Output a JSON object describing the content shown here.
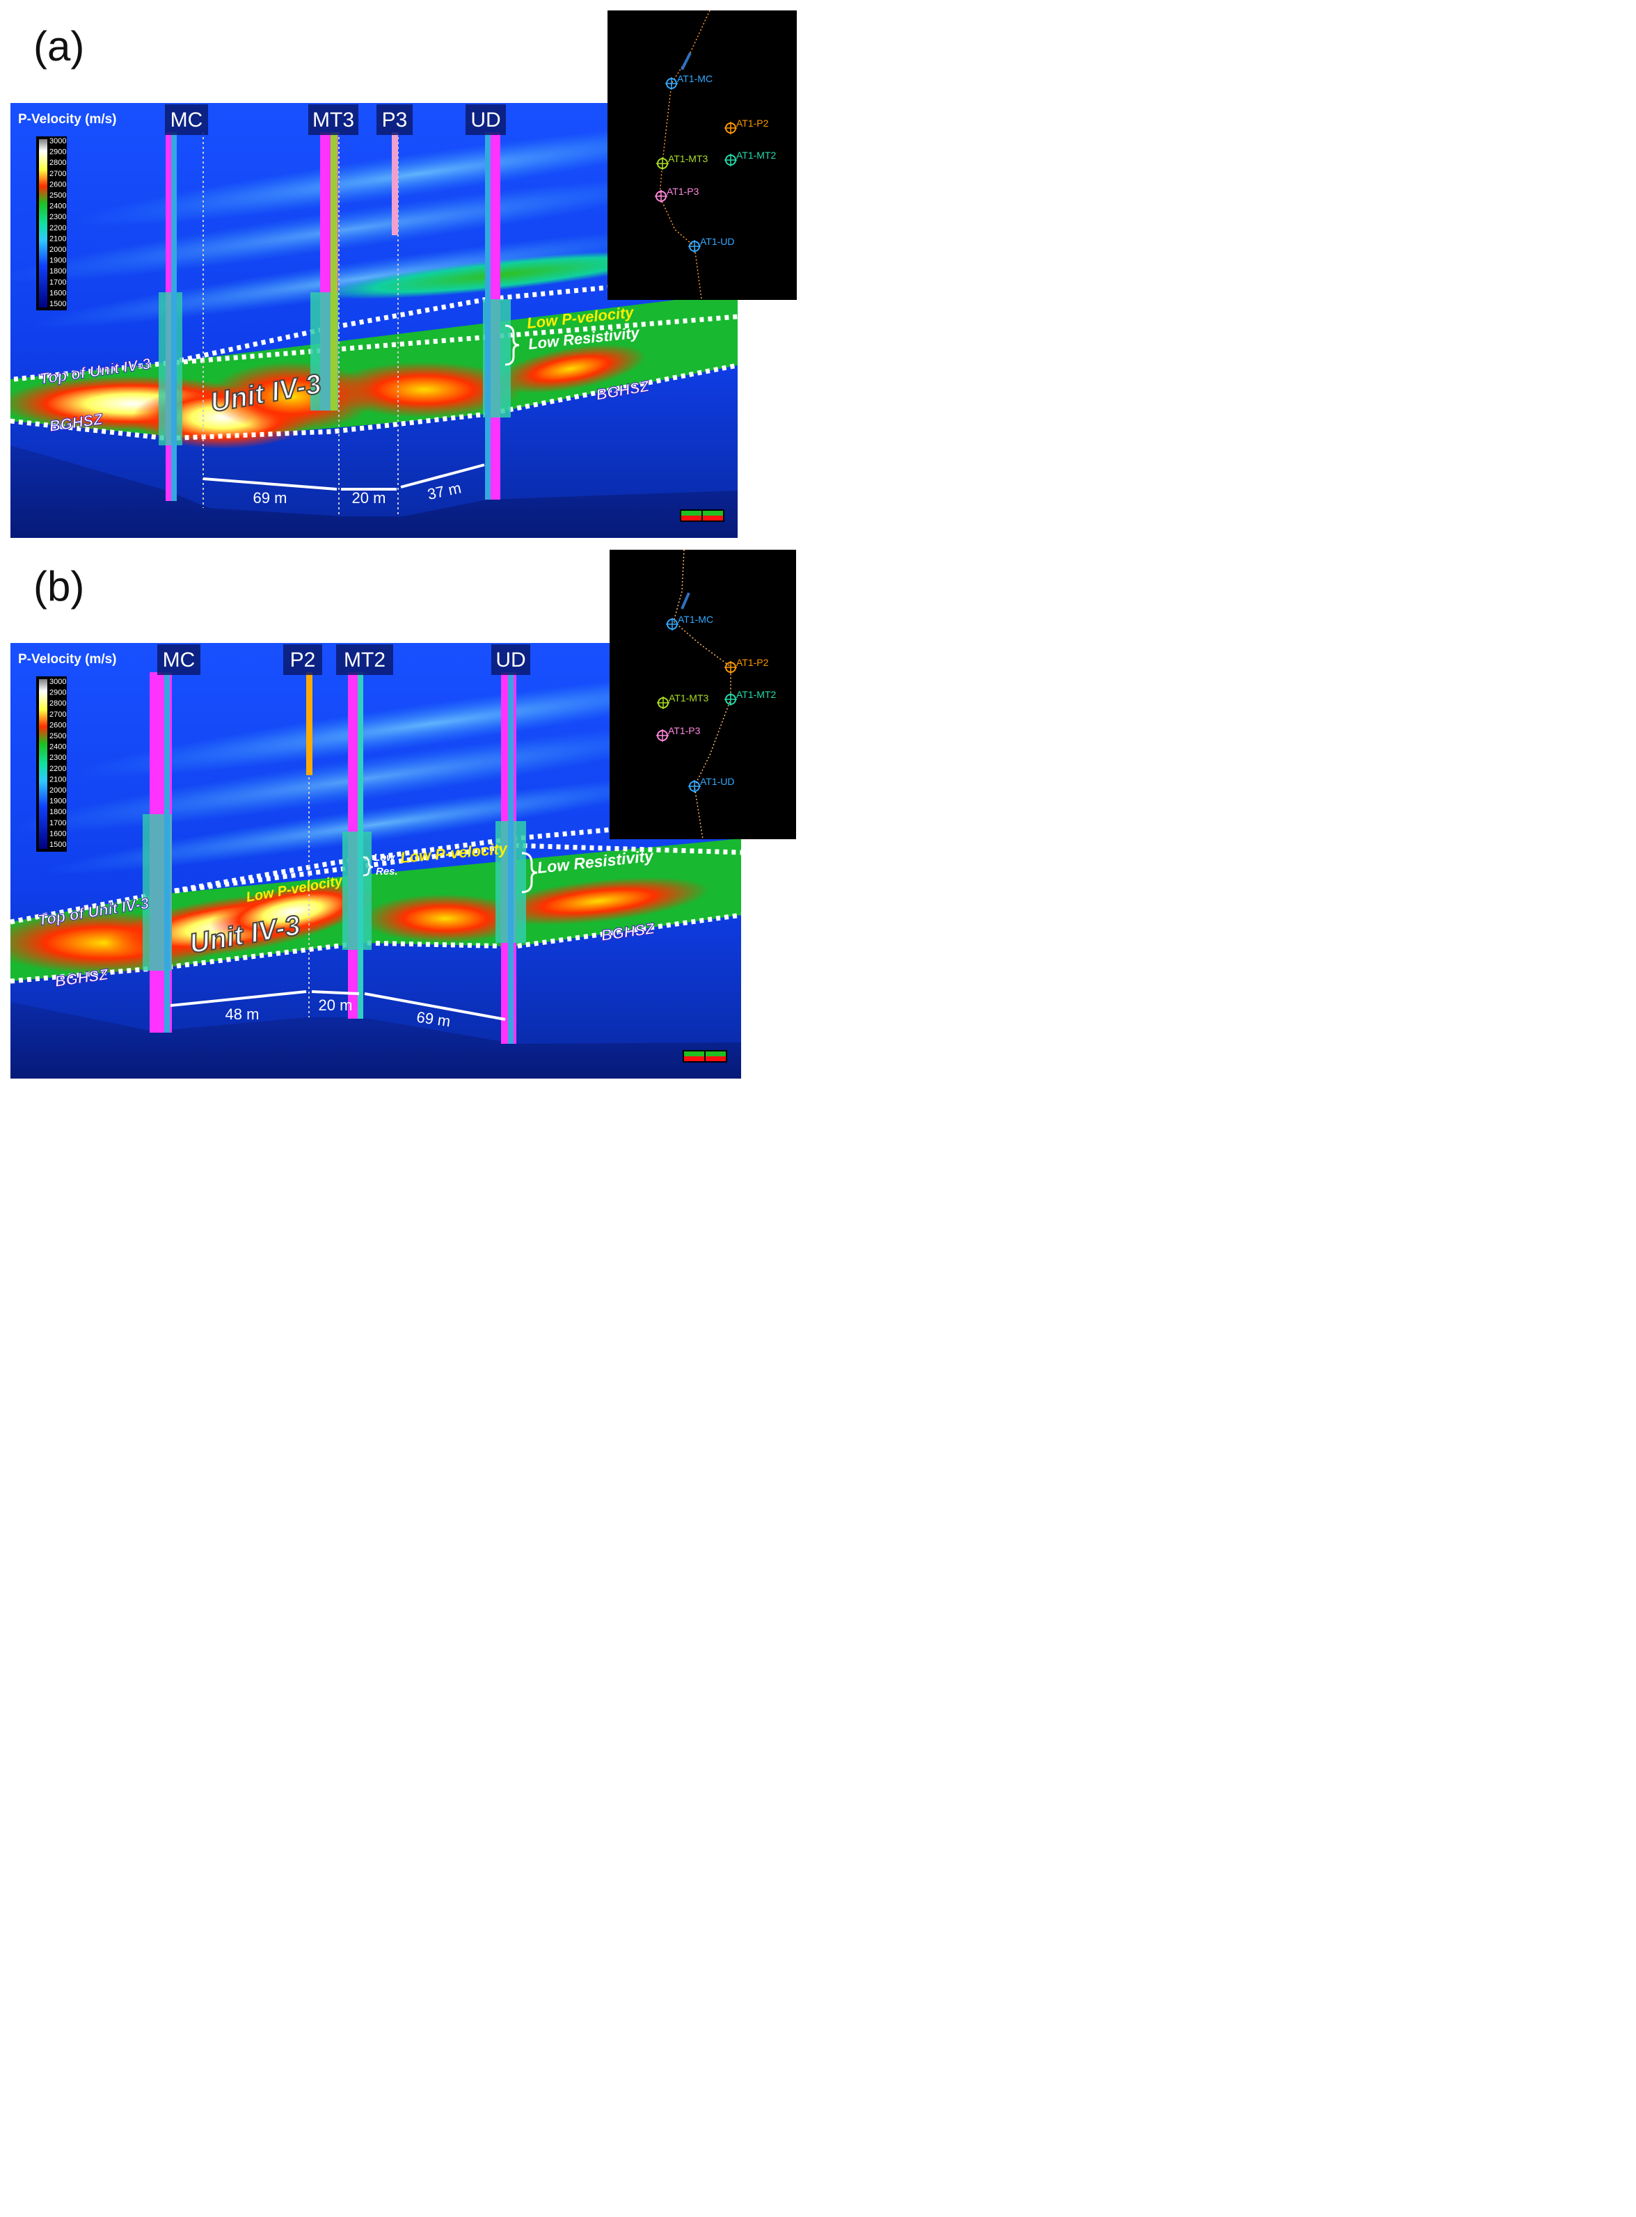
{
  "panels": [
    {
      "letter": "(a)",
      "colorbar": {
        "title": "P-Velocity (m/s)",
        "ticks": [
          "3000",
          "2900",
          "2800",
          "2700",
          "2600",
          "2500",
          "2400",
          "2300",
          "2200",
          "2100",
          "2000",
          "1900",
          "1800",
          "1700",
          "1600",
          "1500"
        ]
      },
      "wells": [
        {
          "label": "MC",
          "color": "#ff33ff"
        },
        {
          "label": "MT3",
          "color": "#9acd32"
        },
        {
          "label": "P3",
          "color": "#f0a0d0"
        },
        {
          "label": "UD",
          "color": "#35a8e0"
        }
      ],
      "annotations": {
        "unit": "Unit IV-3",
        "top": "Top of Unit IV-3",
        "bghsz_left": "BGHSZ",
        "bghsz_right": "BGHSZ",
        "low_p_velocity": "Low P-velocity",
        "low_resistivity": "Low Resistivity"
      },
      "distances": [
        "69 m",
        "20 m",
        "37 m"
      ],
      "map": {
        "points": [
          {
            "label": "AT1-MC",
            "color": "#33aaff"
          },
          {
            "label": "AT1-P2",
            "color": "#ff9900"
          },
          {
            "label": "AT1-MT3",
            "color": "#aadd22"
          },
          {
            "label": "AT1-MT2",
            "color": "#22ddaa"
          },
          {
            "label": "AT1-P3",
            "color": "#ff88dd"
          },
          {
            "label": "AT1-UD",
            "color": "#33aaff"
          }
        ]
      }
    },
    {
      "letter": "(b)",
      "colorbar": {
        "title": "P-Velocity (m/s)",
        "ticks": [
          "3000",
          "2900",
          "2800",
          "2700",
          "2600",
          "2500",
          "2400",
          "2300",
          "2200",
          "2100",
          "2000",
          "1900",
          "1800",
          "1700",
          "1600",
          "1500"
        ]
      },
      "wells": [
        {
          "label": "MC",
          "color": "#ff33ff"
        },
        {
          "label": "P2",
          "color": "#ffaa00"
        },
        {
          "label": "MT2",
          "color": "#ff33ff"
        },
        {
          "label": "UD",
          "color": "#35a8e0"
        }
      ],
      "annotations": {
        "unit": "Unit IV-3",
        "top": "Top of Unit IV-3",
        "bghsz_left": "BGHSZ",
        "bghsz_right": "BGHSZ",
        "low_p_velocity_left": "Low P-velocity",
        "low_res_1": "Low",
        "low_res_2": "Res.",
        "low_p_velocity": "Low P-velocity",
        "low_resistivity": "Low Resistivity"
      },
      "distances": [
        "48 m",
        "20 m",
        "69 m"
      ],
      "map": {
        "points": [
          {
            "label": "AT1-MC",
            "color": "#33aaff"
          },
          {
            "label": "AT1-P2",
            "color": "#ff9900"
          },
          {
            "label": "AT1-MT3",
            "color": "#aadd22"
          },
          {
            "label": "AT1-MT2",
            "color": "#22ddaa"
          },
          {
            "label": "AT1-P3",
            "color": "#ff88dd"
          },
          {
            "label": "AT1-UD",
            "color": "#33aaff"
          }
        ]
      }
    }
  ]
}
